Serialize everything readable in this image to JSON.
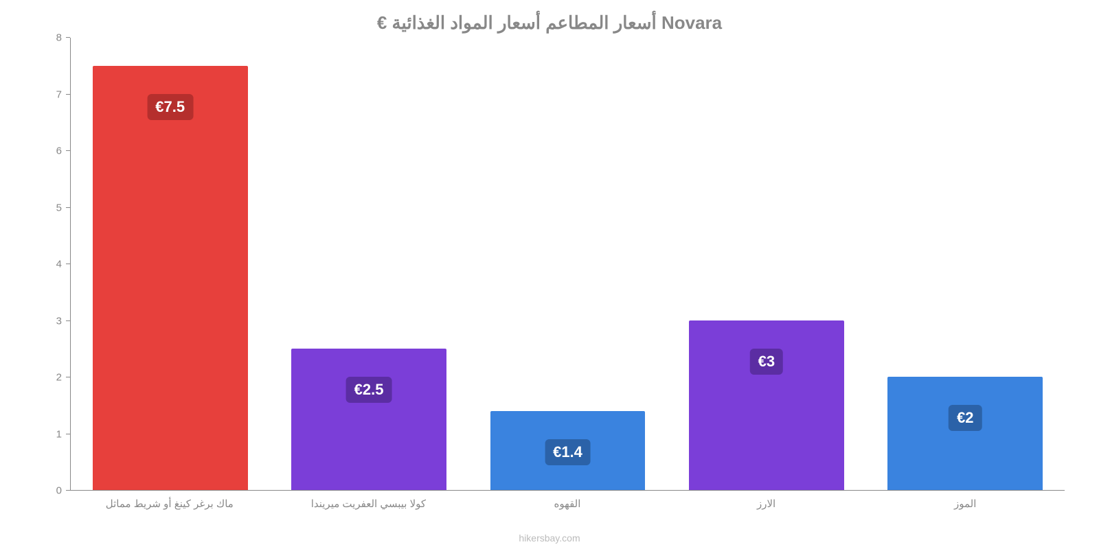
{
  "chart": {
    "type": "bar",
    "title": "€ أسعار المطاعم أسعار المواد الغذائية Novara",
    "title_fontsize": 26,
    "title_color": "#888888",
    "background_color": "#ffffff",
    "axis_color": "#888888",
    "tick_fontsize": 15,
    "tick_color": "#888888",
    "ylim": [
      0,
      8
    ],
    "yticks": [
      0,
      1,
      2,
      3,
      4,
      5,
      6,
      7,
      8
    ],
    "bar_width": 0.78,
    "label_text_color": "#ffffff",
    "label_fontsize": 22,
    "label_radius": 6,
    "attribution": "hikersbay.com",
    "attribution_color": "#bbbbbb",
    "categories": [
      "ماك برغر كينغ أو شريط مماثل",
      "كولا بيبسي العفريت ميريندا",
      "القهوه",
      "الارز",
      "الموز"
    ],
    "values": [
      7.5,
      2.5,
      1.4,
      3,
      2
    ],
    "value_labels": [
      "€7.5",
      "€2.5",
      "€1.4",
      "€3",
      "€2"
    ],
    "bar_colors": [
      "#e7403c",
      "#7b3ed8",
      "#3a83df",
      "#7b3ed8",
      "#3a83df"
    ],
    "label_bg_colors": [
      "#b52f2d",
      "#5b2da3",
      "#2b62a8",
      "#5b2da3",
      "#2b62a8"
    ],
    "label_y_offset": [
      0.5,
      0.5,
      0.5,
      0.5,
      0.5
    ]
  }
}
